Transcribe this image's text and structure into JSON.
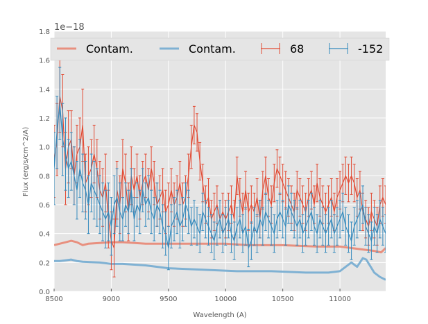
{
  "chart_data": {
    "type": "line",
    "title": "",
    "offset_label": "1e−18",
    "xlabel": "Wavelength (A)",
    "ylabel": "Flux (erg/s/cm^2/A)",
    "xlim": [
      8500,
      11400
    ],
    "ylim": [
      0,
      1.8
    ],
    "xticks": [
      8500,
      9000,
      9500,
      10000,
      10500,
      11000
    ],
    "yticks": [
      "0.0",
      "0.2",
      "0.4",
      "0.6",
      "0.8",
      "1.0",
      "1.2",
      "1.4",
      "1.6",
      "1.8"
    ],
    "grid": true,
    "legend_position": "top",
    "colors": {
      "red": "#e24a33",
      "blue": "#348abd",
      "contam_red": "#e8907f",
      "contam_blue": "#7fb1d3",
      "background": "#e5e5e5",
      "grid": "#ffffff"
    },
    "legend": [
      {
        "label": "Contam.",
        "kind": "line",
        "color": "#e8907f"
      },
      {
        "label": "Contam.",
        "kind": "line",
        "color": "#7fb1d3"
      },
      {
        "label": "68",
        "kind": "errorbar",
        "color": "#e24a33"
      },
      {
        "label": "-152",
        "kind": "errorbar",
        "color": "#348abd"
      }
    ],
    "series": [
      {
        "name": "Contam.",
        "kind": "line",
        "color": "#e8907f",
        "x": [
          8500,
          8600,
          8650,
          8700,
          8750,
          8800,
          9000,
          9100,
          9300,
          9500,
          9800,
          10000,
          10200,
          10500,
          10800,
          11000,
          11100,
          11200,
          11300,
          11360,
          11400
        ],
        "y": [
          0.32,
          0.34,
          0.35,
          0.34,
          0.32,
          0.33,
          0.34,
          0.34,
          0.33,
          0.33,
          0.33,
          0.33,
          0.32,
          0.32,
          0.31,
          0.31,
          0.3,
          0.29,
          0.28,
          0.27,
          0.3
        ]
      },
      {
        "name": "Contam.",
        "kind": "line",
        "color": "#7fb1d3",
        "x": [
          8500,
          8550,
          8600,
          8650,
          8700,
          8750,
          8900,
          9000,
          9100,
          9300,
          9500,
          9800,
          10100,
          10400,
          10700,
          10900,
          11000,
          11050,
          11100,
          11150,
          11200,
          11230,
          11300,
          11350,
          11400
        ],
        "y": [
          0.21,
          0.21,
          0.215,
          0.22,
          0.21,
          0.205,
          0.2,
          0.19,
          0.19,
          0.18,
          0.16,
          0.15,
          0.14,
          0.14,
          0.13,
          0.13,
          0.14,
          0.17,
          0.2,
          0.17,
          0.23,
          0.22,
          0.13,
          0.1,
          0.08
        ]
      },
      {
        "name": "68",
        "kind": "errorbar",
        "color": "#e24a33",
        "x": [
          8500,
          8525,
          8550,
          8575,
          8600,
          8625,
          8650,
          8675,
          8700,
          8725,
          8750,
          8775,
          8800,
          8825,
          8850,
          8875,
          8900,
          8925,
          8950,
          8975,
          9000,
          9025,
          9050,
          9075,
          9100,
          9125,
          9150,
          9175,
          9200,
          9225,
          9250,
          9275,
          9300,
          9325,
          9350,
          9375,
          9400,
          9425,
          9450,
          9475,
          9500,
          9525,
          9550,
          9575,
          9600,
          9625,
          9650,
          9675,
          9700,
          9725,
          9750,
          9775,
          9800,
          9825,
          9850,
          9875,
          9900,
          9925,
          9950,
          9975,
          10000,
          10025,
          10050,
          10075,
          10100,
          10125,
          10150,
          10175,
          10200,
          10225,
          10250,
          10275,
          10300,
          10325,
          10350,
          10375,
          10400,
          10425,
          10450,
          10475,
          10500,
          10525,
          10550,
          10575,
          10600,
          10625,
          10650,
          10675,
          10700,
          10725,
          10750,
          10775,
          10800,
          10825,
          10850,
          10875,
          10900,
          10925,
          10950,
          10975,
          11000,
          11025,
          11050,
          11075,
          11100,
          11125,
          11150,
          11175,
          11200,
          11225,
          11250,
          11275,
          11300,
          11325,
          11350,
          11375,
          11400
        ],
        "y": [
          0.9,
          1.05,
          1.35,
          1.25,
          0.85,
          1.0,
          1.05,
          0.8,
          0.95,
          1.0,
          1.15,
          0.75,
          0.8,
          0.85,
          0.95,
          0.85,
          0.7,
          0.65,
          0.75,
          0.5,
          0.35,
          0.3,
          0.7,
          0.6,
          0.85,
          0.75,
          0.55,
          0.8,
          0.7,
          0.8,
          0.65,
          0.75,
          0.8,
          0.7,
          0.85,
          0.75,
          0.6,
          0.65,
          0.7,
          0.55,
          0.6,
          0.7,
          0.6,
          0.65,
          0.75,
          0.6,
          0.65,
          0.8,
          1.0,
          1.15,
          1.1,
          0.9,
          0.75,
          0.6,
          0.65,
          0.5,
          0.55,
          0.6,
          0.5,
          0.55,
          0.5,
          0.55,
          0.6,
          0.5,
          0.8,
          0.65,
          0.55,
          0.7,
          0.55,
          0.6,
          0.55,
          0.65,
          0.5,
          0.7,
          0.8,
          0.65,
          0.6,
          0.75,
          0.85,
          0.8,
          0.75,
          0.7,
          0.65,
          0.6,
          0.55,
          0.7,
          0.65,
          0.6,
          0.55,
          0.65,
          0.7,
          0.6,
          0.75,
          0.65,
          0.6,
          0.55,
          0.6,
          0.65,
          0.55,
          0.65,
          0.7,
          0.75,
          0.8,
          0.75,
          0.8,
          0.75,
          0.65,
          0.7,
          0.55,
          0.5,
          0.45,
          0.55,
          0.5,
          0.45,
          0.6,
          0.65,
          0.6
        ],
        "err": [
          0.25,
          0.25,
          0.25,
          0.25,
          0.25,
          0.25,
          0.2,
          0.2,
          0.2,
          0.2,
          0.25,
          0.2,
          0.2,
          0.2,
          0.2,
          0.2,
          0.2,
          0.2,
          0.2,
          0.2,
          0.2,
          0.2,
          0.2,
          0.2,
          0.2,
          0.2,
          0.2,
          0.2,
          0.15,
          0.15,
          0.15,
          0.15,
          0.15,
          0.15,
          0.15,
          0.15,
          0.15,
          0.15,
          0.15,
          0.15,
          0.15,
          0.15,
          0.15,
          0.15,
          0.15,
          0.15,
          0.15,
          0.15,
          0.15,
          0.13,
          0.13,
          0.13,
          0.13,
          0.13,
          0.13,
          0.13,
          0.13,
          0.13,
          0.13,
          0.13,
          0.13,
          0.13,
          0.13,
          0.13,
          0.13,
          0.13,
          0.13,
          0.13,
          0.13,
          0.13,
          0.13,
          0.13,
          0.13,
          0.13,
          0.13,
          0.13,
          0.13,
          0.13,
          0.13,
          0.13,
          0.13,
          0.13,
          0.13,
          0.13,
          0.13,
          0.13,
          0.13,
          0.13,
          0.13,
          0.13,
          0.13,
          0.13,
          0.13,
          0.13,
          0.13,
          0.13,
          0.13,
          0.13,
          0.13,
          0.13,
          0.13,
          0.13,
          0.13,
          0.13,
          0.13,
          0.13,
          0.13,
          0.13,
          0.13,
          0.13,
          0.13,
          0.13,
          0.13,
          0.13,
          0.13,
          0.13,
          0.13
        ]
      },
      {
        "name": "-152",
        "kind": "errorbar",
        "color": "#348abd",
        "x": [
          8500,
          8525,
          8550,
          8575,
          8600,
          8625,
          8650,
          8675,
          8700,
          8725,
          8750,
          8775,
          8800,
          8825,
          8850,
          8875,
          8900,
          8925,
          8950,
          8975,
          9000,
          9025,
          9050,
          9075,
          9100,
          9125,
          9150,
          9175,
          9200,
          9225,
          9250,
          9275,
          9300,
          9325,
          9350,
          9375,
          9400,
          9425,
          9450,
          9475,
          9500,
          9525,
          9550,
          9575,
          9600,
          9625,
          9650,
          9675,
          9700,
          9725,
          9750,
          9775,
          9800,
          9825,
          9850,
          9875,
          9900,
          9925,
          9950,
          9975,
          10000,
          10025,
          10050,
          10075,
          10100,
          10125,
          10150,
          10175,
          10200,
          10225,
          10250,
          10275,
          10300,
          10325,
          10350,
          10375,
          10400,
          10425,
          10450,
          10475,
          10500,
          10525,
          10550,
          10575,
          10600,
          10625,
          10650,
          10675,
          10700,
          10725,
          10750,
          10775,
          10800,
          10825,
          10850,
          10875,
          10900,
          10925,
          10950,
          10975,
          11000,
          11025,
          11050,
          11075,
          11100,
          11125,
          11150,
          11175,
          11200,
          11225,
          11250,
          11275,
          11300,
          11325,
          11350,
          11375,
          11400
        ],
        "y": [
          0.85,
          1.1,
          1.3,
          1.05,
          0.95,
          0.85,
          0.9,
          0.8,
          0.7,
          0.85,
          0.75,
          0.7,
          0.6,
          0.75,
          0.7,
          0.65,
          0.6,
          0.55,
          0.5,
          0.55,
          0.45,
          0.6,
          0.65,
          0.55,
          0.5,
          0.6,
          0.55,
          0.7,
          0.5,
          0.6,
          0.55,
          0.7,
          0.6,
          0.65,
          0.55,
          0.5,
          0.6,
          0.55,
          0.45,
          0.4,
          0.3,
          0.45,
          0.5,
          0.55,
          0.45,
          0.5,
          0.6,
          0.55,
          0.45,
          0.5,
          0.45,
          0.4,
          0.55,
          0.5,
          0.45,
          0.4,
          0.35,
          0.45,
          0.5,
          0.4,
          0.45,
          0.5,
          0.4,
          0.35,
          0.45,
          0.5,
          0.4,
          0.45,
          0.3,
          0.35,
          0.45,
          0.4,
          0.5,
          0.45,
          0.55,
          0.5,
          0.45,
          0.4,
          0.5,
          0.55,
          0.5,
          0.45,
          0.6,
          0.55,
          0.5,
          0.45,
          0.5,
          0.4,
          0.45,
          0.5,
          0.55,
          0.45,
          0.4,
          0.5,
          0.45,
          0.4,
          0.45,
          0.5,
          0.4,
          0.45,
          0.5,
          0.55,
          0.45,
          0.4,
          0.35,
          0.45,
          0.5,
          0.55,
          0.6,
          0.45,
          0.4,
          0.35,
          0.45,
          0.4,
          0.5,
          0.45,
          0.4
        ],
        "err": [
          0.25,
          0.25,
          0.25,
          0.25,
          0.25,
          0.2,
          0.2,
          0.2,
          0.2,
          0.2,
          0.2,
          0.2,
          0.2,
          0.2,
          0.2,
          0.2,
          0.2,
          0.2,
          0.2,
          0.2,
          0.2,
          0.2,
          0.2,
          0.2,
          0.15,
          0.15,
          0.15,
          0.15,
          0.15,
          0.15,
          0.15,
          0.15,
          0.15,
          0.15,
          0.15,
          0.15,
          0.15,
          0.15,
          0.15,
          0.15,
          0.15,
          0.15,
          0.15,
          0.15,
          0.15,
          0.15,
          0.15,
          0.15,
          0.13,
          0.13,
          0.13,
          0.13,
          0.13,
          0.13,
          0.13,
          0.13,
          0.13,
          0.13,
          0.13,
          0.13,
          0.13,
          0.13,
          0.13,
          0.13,
          0.13,
          0.13,
          0.13,
          0.13,
          0.13,
          0.13,
          0.13,
          0.13,
          0.13,
          0.13,
          0.13,
          0.13,
          0.13,
          0.13,
          0.13,
          0.13,
          0.13,
          0.13,
          0.13,
          0.13,
          0.13,
          0.13,
          0.13,
          0.13,
          0.13,
          0.13,
          0.13,
          0.13,
          0.13,
          0.13,
          0.13,
          0.13,
          0.13,
          0.13,
          0.13,
          0.13,
          0.13,
          0.13,
          0.13,
          0.13,
          0.13,
          0.13,
          0.13,
          0.13,
          0.13,
          0.13,
          0.13,
          0.13,
          0.13,
          0.13,
          0.13,
          0.13,
          0.13
        ]
      }
    ]
  }
}
